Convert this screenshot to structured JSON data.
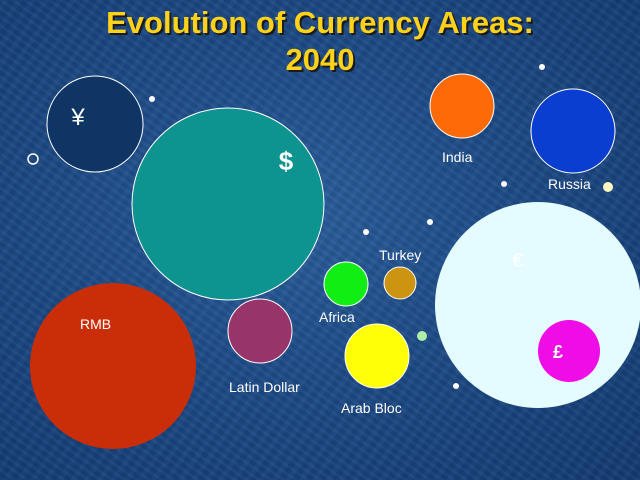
{
  "title": {
    "line1": "Evolution of Currency Areas:",
    "line2": "2040"
  },
  "currency_areas": {
    "yen": {
      "symbol": "¥",
      "color": "#0f3565"
    },
    "dollar": {
      "symbol": "$",
      "color": "#0e9490"
    },
    "rmb": {
      "label": "RMB",
      "color": "#c92e08"
    },
    "latin_dollar": {
      "label": "Latin Dollar",
      "color": "#97346a"
    },
    "africa": {
      "label": "Africa",
      "color": "#10ee14"
    },
    "turkey": {
      "label": "Turkey",
      "color": "#cc9410"
    },
    "arab_bloc": {
      "label": "Arab Bloc",
      "color": "#ffff08"
    },
    "india": {
      "label": "India",
      "color": "#ff6a08"
    },
    "russia": {
      "label": "Russia",
      "color": "#0a3ed0"
    },
    "euro": {
      "symbol": "€",
      "color": "#e4fcff"
    },
    "pound": {
      "symbol": "£",
      "color": "#f00ce6"
    }
  }
}
